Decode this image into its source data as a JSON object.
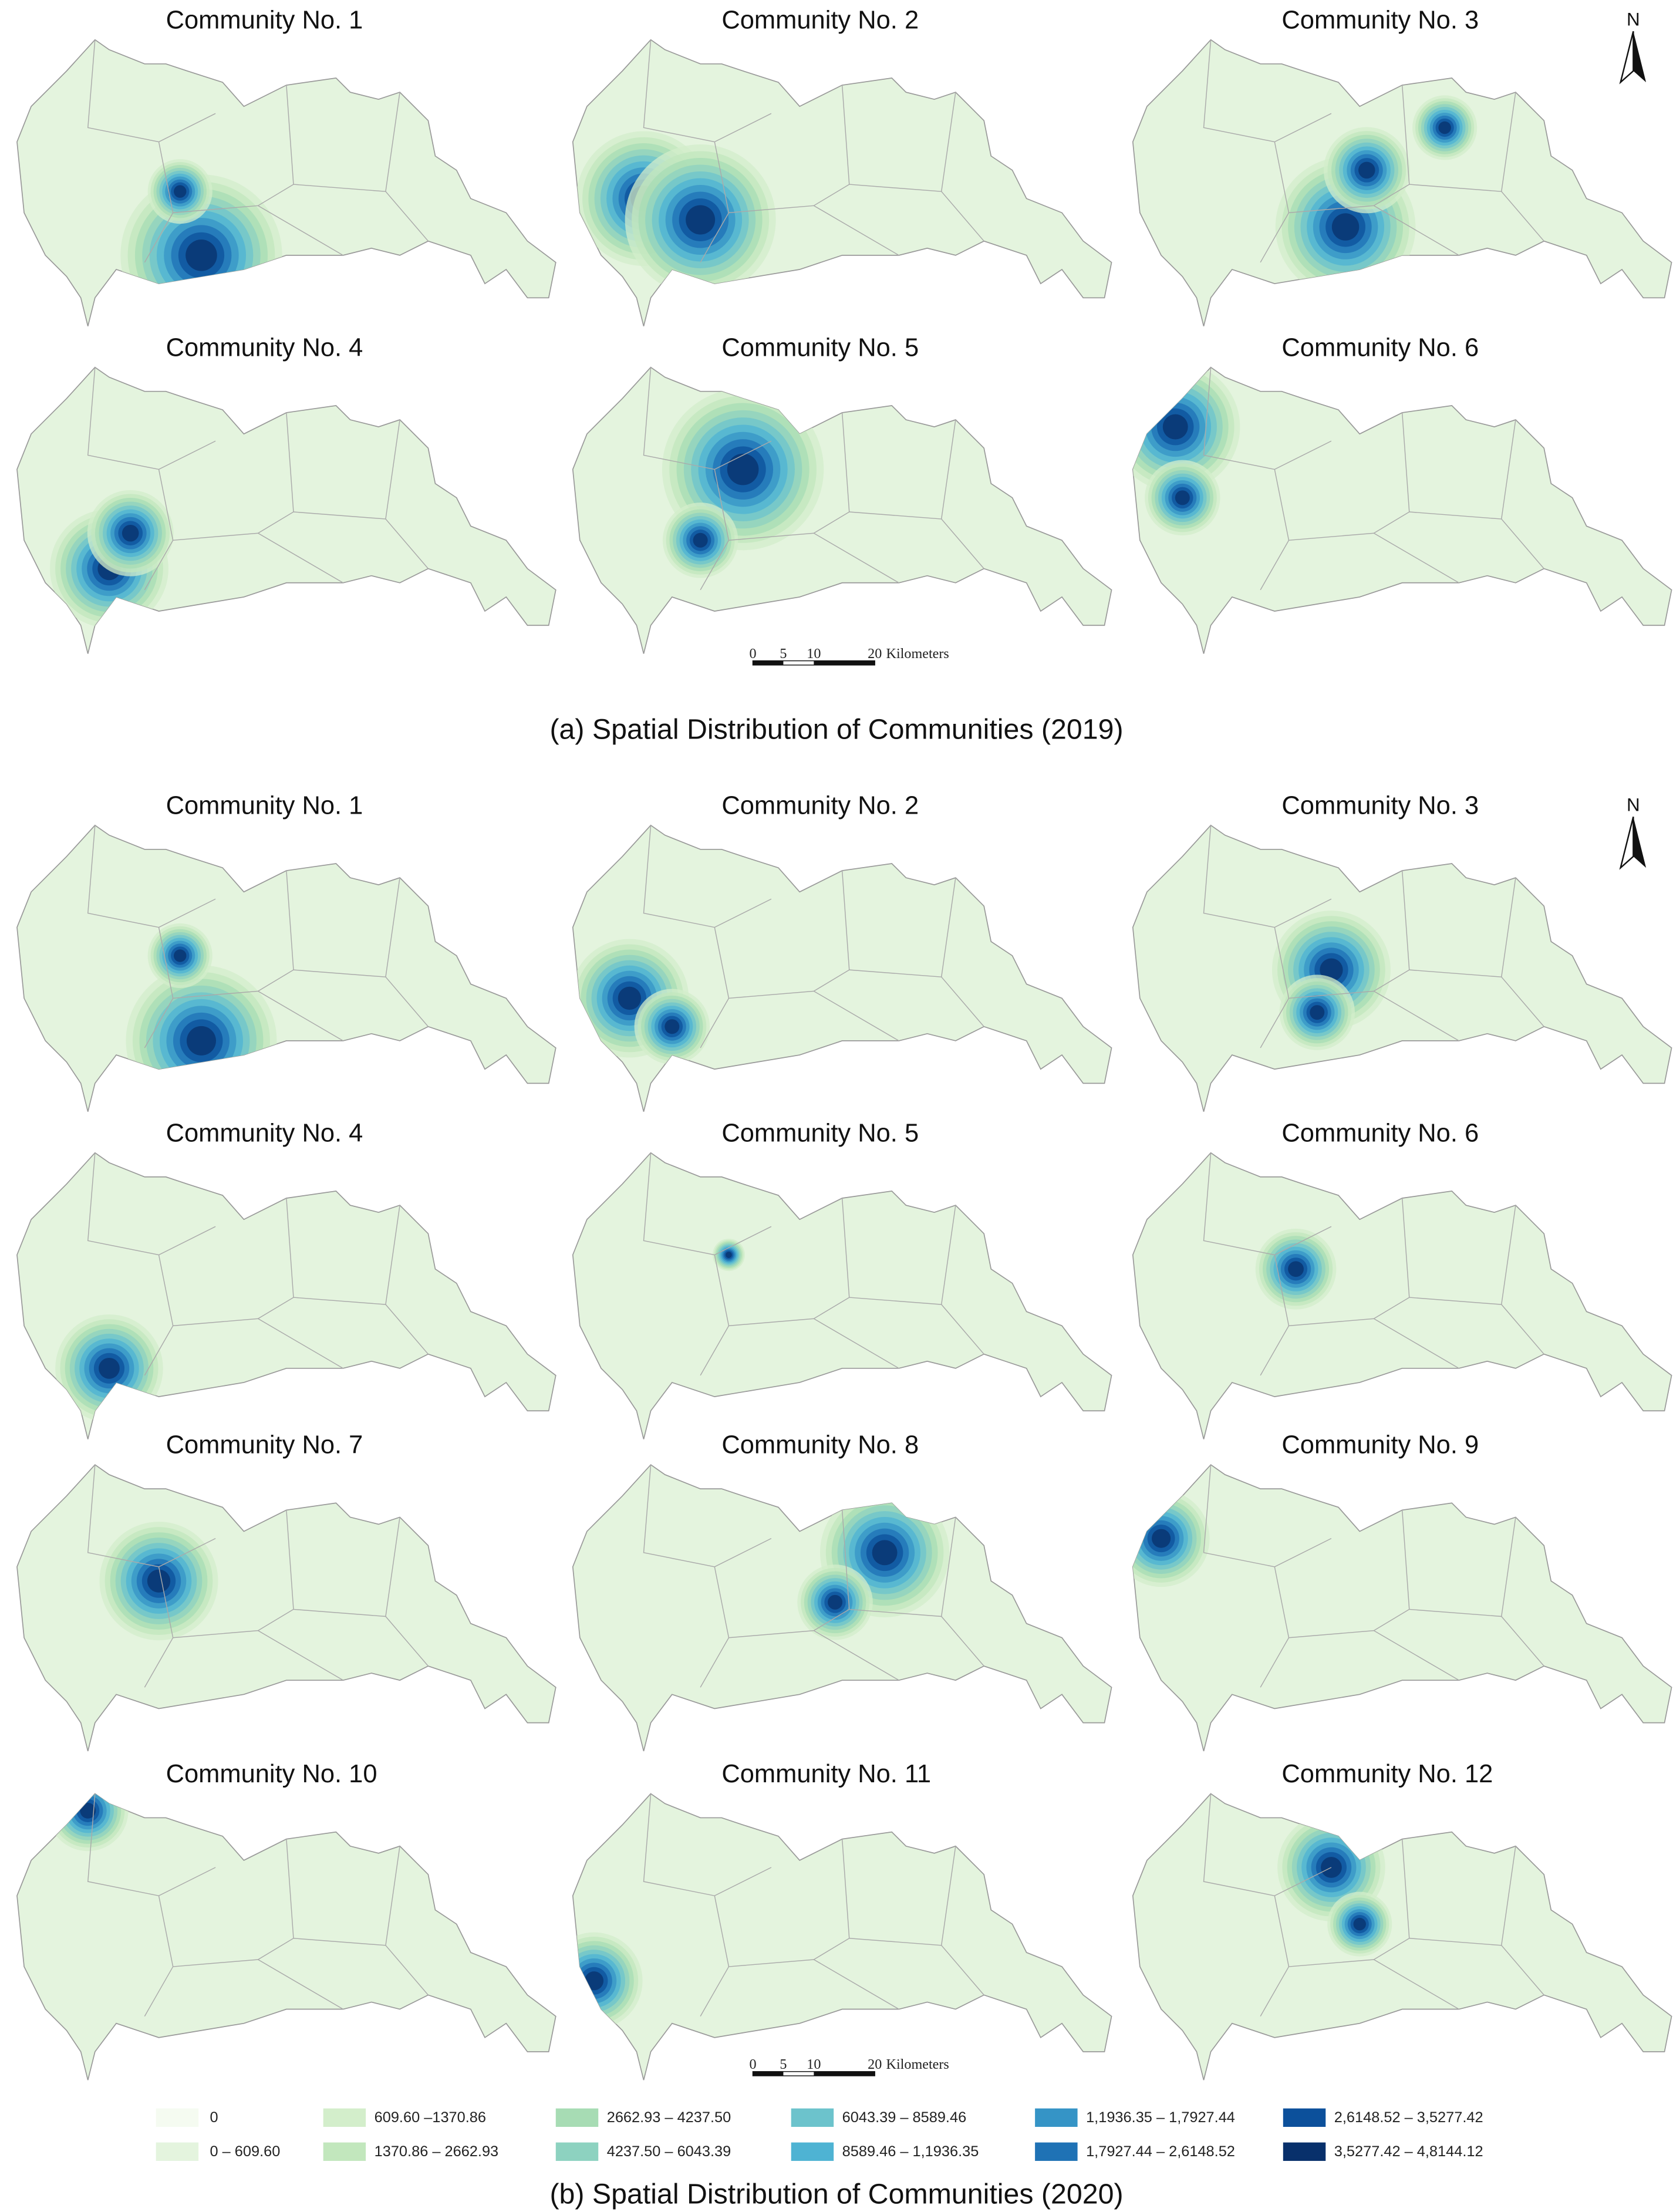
{
  "figure": {
    "section_2019": {
      "caption": "(a) Spatial Distribution of Communities (2019)",
      "panels": [
        {
          "title": "Community No. 1"
        },
        {
          "title": "Community No. 2"
        },
        {
          "title": "Community No. 3"
        },
        {
          "title": "Community No. 4"
        },
        {
          "title": "Community No. 5"
        },
        {
          "title": "Community No. 6"
        }
      ]
    },
    "section_2020": {
      "caption": "(b) Spatial Distribution of Communities (2020)",
      "panels": [
        {
          "title": "Community No. 1"
        },
        {
          "title": "Community No. 2"
        },
        {
          "title": "Community No. 3"
        },
        {
          "title": "Community No. 4"
        },
        {
          "title": "Community No. 5"
        },
        {
          "title": "Community No. 6"
        },
        {
          "title": "Community No. 7"
        },
        {
          "title": "Community No. 8"
        },
        {
          "title": "Community No. 9"
        },
        {
          "title": "Community No. 10"
        },
        {
          "title": "Community No. 11"
        },
        {
          "title": "Community No. 12"
        }
      ]
    },
    "north": "N",
    "scale_bar": {
      "labels": [
        "0",
        "5",
        "10",
        "20"
      ],
      "unit": "Kilometers"
    },
    "legend": {
      "items": [
        {
          "label": "0",
          "color": "#f5fbf1"
        },
        {
          "label": "0 – 609.60",
          "color": "#e4f4de"
        },
        {
          "label": "609.60 –1370.86",
          "color": "#d3eecb"
        },
        {
          "label": "1370.86 – 2662.93",
          "color": "#c2e7bd"
        },
        {
          "label": "2662.93 – 4237.50",
          "color": "#a7dcb4"
        },
        {
          "label": "4237.50 – 6043.39",
          "color": "#8dd2c0"
        },
        {
          "label": "6043.39 – 8589.46",
          "color": "#6cc3cc"
        },
        {
          "label": "8589.46 – 1,1936.35",
          "color": "#4eb3d3"
        },
        {
          "label": "1,1936.35 – 1,7927.44",
          "color": "#3594c6"
        },
        {
          "label": "1,7927.44 – 2,6148.52",
          "color": "#1f72b5"
        },
        {
          "label": "2,6148.52 – 3,5277.42",
          "color": "#0c509b"
        },
        {
          "label": "3,5277.42 – 4,8144.12",
          "color": "#08306b"
        }
      ]
    }
  }
}
